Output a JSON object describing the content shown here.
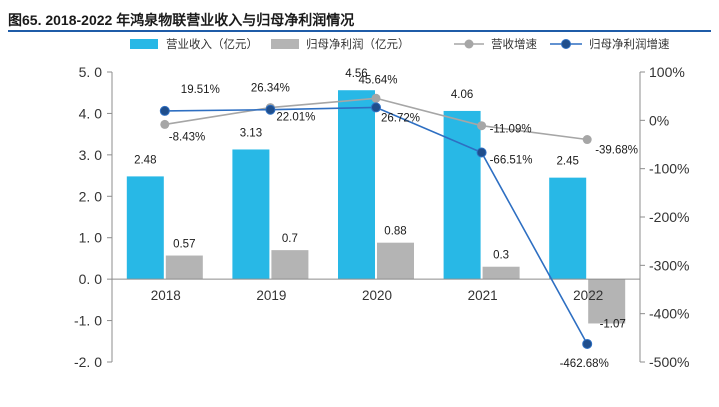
{
  "title": "图65. 2018-2022 年鸿泉物联营业收入与归母净利润情况",
  "colors": {
    "revenue_bar": "#28b8e6",
    "profit_bar": "#b4b4b4",
    "revenue_growth_line": "#a6a6a6",
    "profit_growth_line": "#2e6fc2",
    "profit_growth_marker": "#1f4e8c",
    "title_rule": "#1f5ca8"
  },
  "chart_data": {
    "type": "bar",
    "title": "2018-2022 年鸿泉物联营业收入与归母净利润情况",
    "categories": [
      "2018",
      "2019",
      "2020",
      "2021",
      "2022"
    ],
    "series": [
      {
        "name": "营业收入（亿元）",
        "kind": "bar",
        "axis": "left",
        "values": [
          2.48,
          3.13,
          4.56,
          4.06,
          2.45
        ],
        "labels": [
          "2.48",
          "3.13",
          "4.56",
          "4.06",
          "2.45"
        ]
      },
      {
        "name": "归母净利润（亿元）",
        "kind": "bar",
        "axis": "left",
        "values": [
          0.57,
          0.7,
          0.88,
          0.3,
          -1.07
        ],
        "labels": [
          "0.57",
          "0.7",
          "0.88",
          "0.3",
          "-1.07"
        ]
      },
      {
        "name": "营收增速",
        "kind": "line",
        "axis": "right",
        "values": [
          -8.43,
          26.34,
          45.64,
          -11.09,
          -39.68
        ],
        "labels": [
          "-8.43%",
          "26.34%",
          "45.64%",
          "-11.09%",
          "-39.68%"
        ]
      },
      {
        "name": "归母净利润增速",
        "kind": "line",
        "axis": "right",
        "values": [
          19.51,
          22.01,
          26.72,
          -66.51,
          -462.68
        ],
        "labels": [
          "19.51%",
          "22.01%",
          "26.72%",
          "-66.51%",
          "-462.68%"
        ]
      }
    ],
    "y_left": {
      "min": -2.0,
      "max": 5.0,
      "step": 1.0,
      "tick_labels": [
        "5. 0",
        "4. 0",
        "3. 0",
        "2. 0",
        "1. 0",
        "0. 0",
        "-1. 0",
        "-2. 0"
      ]
    },
    "y_right": {
      "min": -500,
      "max": 100,
      "step": 100,
      "tick_labels": [
        "100%",
        "0%",
        "-100%",
        "-200%",
        "-300%",
        "-400%",
        "-500%"
      ]
    },
    "legend": "top"
  }
}
